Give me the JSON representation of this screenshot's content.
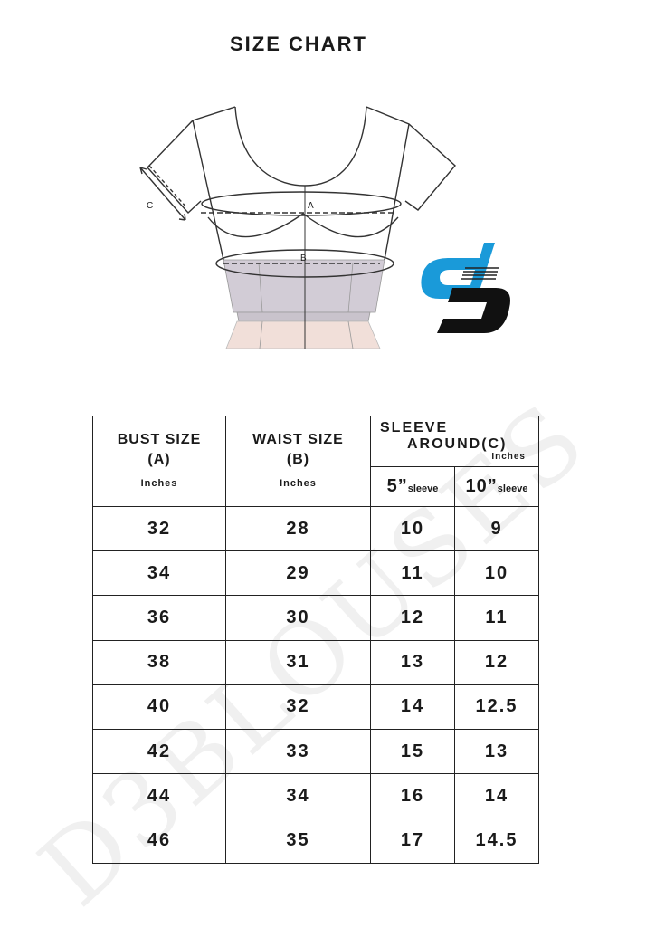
{
  "title": "SIZE CHART",
  "figure": {
    "labels": {
      "a": "A",
      "b": "B",
      "c": "C"
    }
  },
  "logo": {
    "text": "d3",
    "colors": {
      "top": "#1a9ad9",
      "bottom": "#111111"
    }
  },
  "watermark": "D3BLOUSES",
  "table": {
    "headers": {
      "bust": {
        "title": "BUST SIZE",
        "code": "(A)",
        "unit": "Inches"
      },
      "waist": {
        "title": "WAIST SIZE",
        "code": "(B)",
        "unit": "Inches"
      },
      "sleeve": {
        "line1": "SLEEVE",
        "line2": "AROUND",
        "code": "(C)",
        "unit": "Inches",
        "sub": [
          {
            "num": "5”",
            "label": "sleeve"
          },
          {
            "num": "10”",
            "label": "sleeve"
          }
        ]
      }
    },
    "rows": [
      [
        "32",
        "28",
        "10",
        "9"
      ],
      [
        "34",
        "29",
        "11",
        "10"
      ],
      [
        "36",
        "30",
        "12",
        "11"
      ],
      [
        "38",
        "31",
        "13",
        "12"
      ],
      [
        "40",
        "32",
        "14",
        "12.5"
      ],
      [
        "42",
        "33",
        "15",
        "13"
      ],
      [
        "44",
        "34",
        "16",
        "14"
      ],
      [
        "46",
        "35",
        "17",
        "14.5"
      ]
    ]
  }
}
